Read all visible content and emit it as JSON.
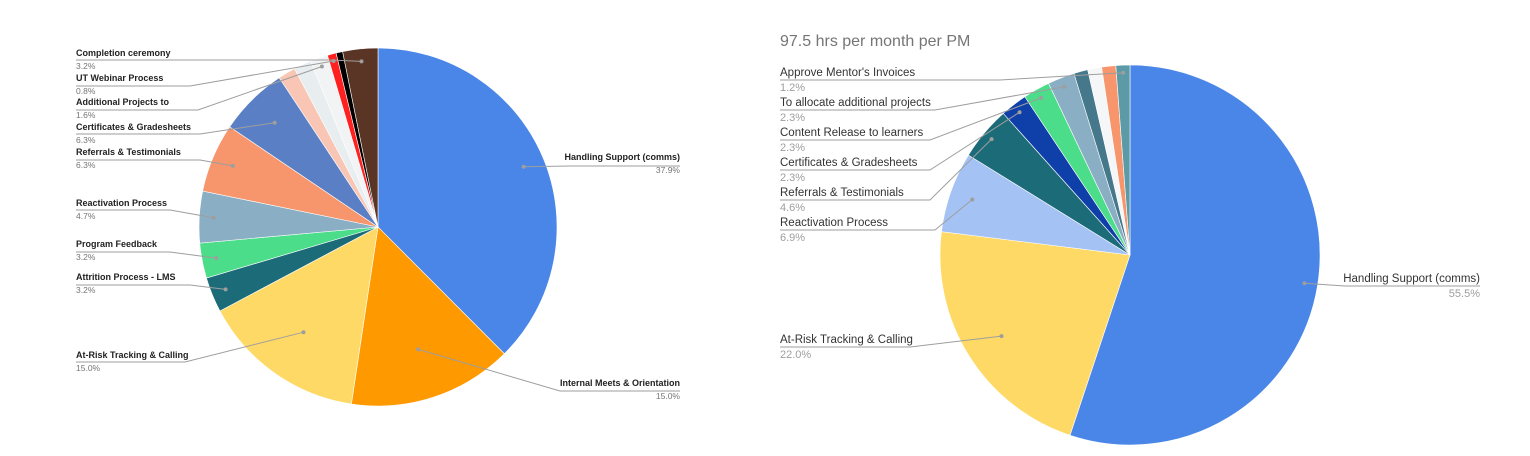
{
  "chart_data": [
    {
      "type": "pie",
      "title": "",
      "slices": [
        {
          "label": "Handling Support (comms)",
          "pct_label": "37.9%",
          "value": 37.9,
          "color": "#4a86e8"
        },
        {
          "label": "Internal Meets & Orientation",
          "pct_label": "15.0%",
          "value": 15.0,
          "color": "#ff9900"
        },
        {
          "label": "At-Risk Tracking & Calling",
          "pct_label": "15.0%",
          "value": 15.0,
          "color": "#ffd966"
        },
        {
          "label": "Attrition Process - LMS",
          "pct_label": "3.2%",
          "value": 3.2,
          "color": "#1c6b78"
        },
        {
          "label": "Program Feedback",
          "pct_label": "3.2%",
          "value": 3.2,
          "color": "#4cdd8a"
        },
        {
          "label": "Reactivation Process",
          "pct_label": "4.7%",
          "value": 4.7,
          "color": "#8aafc4"
        },
        {
          "label": "Referrals & Testimonials",
          "pct_label": "6.3%",
          "value": 6.3,
          "color": "#f7956c"
        },
        {
          "label": "Certificates & Gradesheets",
          "pct_label": "6.3%",
          "value": 6.3,
          "color": "#5b7fc4"
        },
        {
          "label": "",
          "pct_label": "",
          "value": 1.6,
          "color": "#f9c5b4"
        },
        {
          "label": "",
          "pct_label": "",
          "value": 1.6,
          "color": "#e8edf0"
        },
        {
          "label": "Additional Projects to",
          "pct_label": "1.6%",
          "value": 1.6,
          "color": "#f1f3f4"
        },
        {
          "label": "UT Webinar Process",
          "pct_label": "0.8%",
          "value": 0.8,
          "color": "#ff2020"
        },
        {
          "label": "",
          "pct_label": "",
          "value": 0.6,
          "color": "#000000"
        },
        {
          "label": "Completion ceremony",
          "pct_label": "3.2%",
          "value": 3.2,
          "color": "#5a3525"
        }
      ]
    },
    {
      "type": "pie",
      "title": "97.5 hrs per month per PM",
      "slices": [
        {
          "label": "Handling Support (comms)",
          "pct_label": "55.5%",
          "value": 55.5,
          "color": "#4a86e8"
        },
        {
          "label": "At-Risk Tracking & Calling",
          "pct_label": "22.0%",
          "value": 22.0,
          "color": "#ffd966"
        },
        {
          "label": "Reactivation Process",
          "pct_label": "6.9%",
          "value": 6.9,
          "color": "#a4c2f4"
        },
        {
          "label": "Referrals & Testimonials",
          "pct_label": "4.6%",
          "value": 4.6,
          "color": "#1c6b78"
        },
        {
          "label": "Certificates & Gradesheets",
          "pct_label": "2.3%",
          "value": 2.3,
          "color": "#0f3fa8"
        },
        {
          "label": "Content Release to learners",
          "pct_label": "2.3%",
          "value": 2.3,
          "color": "#4cdd8a"
        },
        {
          "label": "To allocate additional projects",
          "pct_label": "2.3%",
          "value": 2.3,
          "color": "#8aafc4"
        },
        {
          "label": "",
          "pct_label": "",
          "value": 1.2,
          "color": "#44788a"
        },
        {
          "label": "",
          "pct_label": "",
          "value": 1.2,
          "color": "#f4f6f8"
        },
        {
          "label": "",
          "pct_label": "",
          "value": 1.2,
          "color": "#f7956c"
        },
        {
          "label": "Approve Mentor's Invoices",
          "pct_label": "1.2%",
          "value": 1.2,
          "color": "#5b9aa6"
        }
      ]
    }
  ]
}
